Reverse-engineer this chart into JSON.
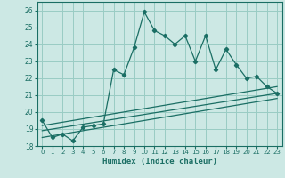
{
  "xlabel": "Humidex (Indice chaleur)",
  "bg_color": "#cce8e4",
  "grid_color": "#99ccc4",
  "line_color": "#1a6e64",
  "xlim": [
    -0.5,
    23.5
  ],
  "ylim": [
    18,
    26.5
  ],
  "xticks": [
    0,
    1,
    2,
    3,
    4,
    5,
    6,
    7,
    8,
    9,
    10,
    11,
    12,
    13,
    14,
    15,
    16,
    17,
    18,
    19,
    20,
    21,
    22,
    23
  ],
  "yticks": [
    18,
    19,
    20,
    21,
    22,
    23,
    24,
    25,
    26
  ],
  "main_line_x": [
    0,
    1,
    2,
    3,
    4,
    5,
    6,
    7,
    8,
    9,
    10,
    11,
    12,
    13,
    14,
    15,
    16,
    17,
    18,
    19,
    20,
    21,
    22,
    23
  ],
  "main_line_y": [
    19.5,
    18.5,
    18.7,
    18.3,
    19.1,
    19.2,
    19.3,
    22.5,
    22.2,
    23.8,
    25.9,
    24.8,
    24.5,
    24.0,
    24.5,
    23.0,
    24.5,
    22.5,
    23.7,
    22.8,
    22.0,
    22.1,
    21.5,
    21.1
  ],
  "line2_x": [
    0,
    23
  ],
  "line2_y": [
    19.2,
    21.5
  ],
  "line3_x": [
    0,
    23
  ],
  "line3_y": [
    18.9,
    21.1
  ],
  "line4_x": [
    0,
    23
  ],
  "line4_y": [
    18.5,
    20.8
  ]
}
